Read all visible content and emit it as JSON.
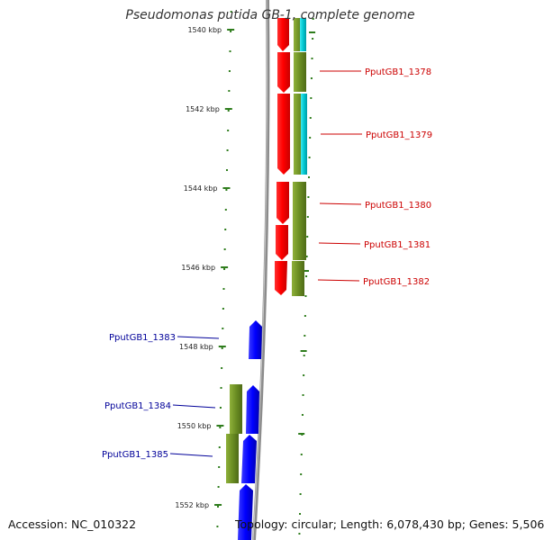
{
  "title": "Pseudomonas putida GB-1, complete genome",
  "accession": "Accession: NC_010322",
  "topology": "Topology: circular; Length: 6,078,430 bp; Genes: 5,506",
  "colors": {
    "backbone": "#8c8c8c",
    "tick": "#2f7d1d",
    "red_cds": "#ff0000",
    "olive_cds": "#6b8e23",
    "cyan_cds": "#00c8d2",
    "blue_cds": "#0000ff",
    "label_forward": "#cc0000",
    "label_reverse": "#000099"
  },
  "axis": {
    "unit": "kbp",
    "major_ticks": [
      1540,
      1542,
      1544,
      1546,
      1548,
      1550,
      1552
    ],
    "tick_labels": [
      "1540 kbp",
      "1542 kbp",
      "1544 kbp",
      "1546 kbp",
      "1548 kbp",
      "1550 kbp",
      "1552 kbp"
    ]
  },
  "gene_labels": [
    {
      "text": "PputGB1_1378",
      "strand": "forward"
    },
    {
      "text": "PputGB1_1379",
      "strand": "forward"
    },
    {
      "text": "PputGB1_1380",
      "strand": "forward"
    },
    {
      "text": "PputGB1_1381",
      "strand": "forward"
    },
    {
      "text": "PputGB1_1382",
      "strand": "forward"
    },
    {
      "text": "PputGB1_1383",
      "strand": "reverse"
    },
    {
      "text": "PputGB1_1384",
      "strand": "reverse"
    },
    {
      "text": "PputGB1_1385",
      "strand": "reverse"
    }
  ]
}
